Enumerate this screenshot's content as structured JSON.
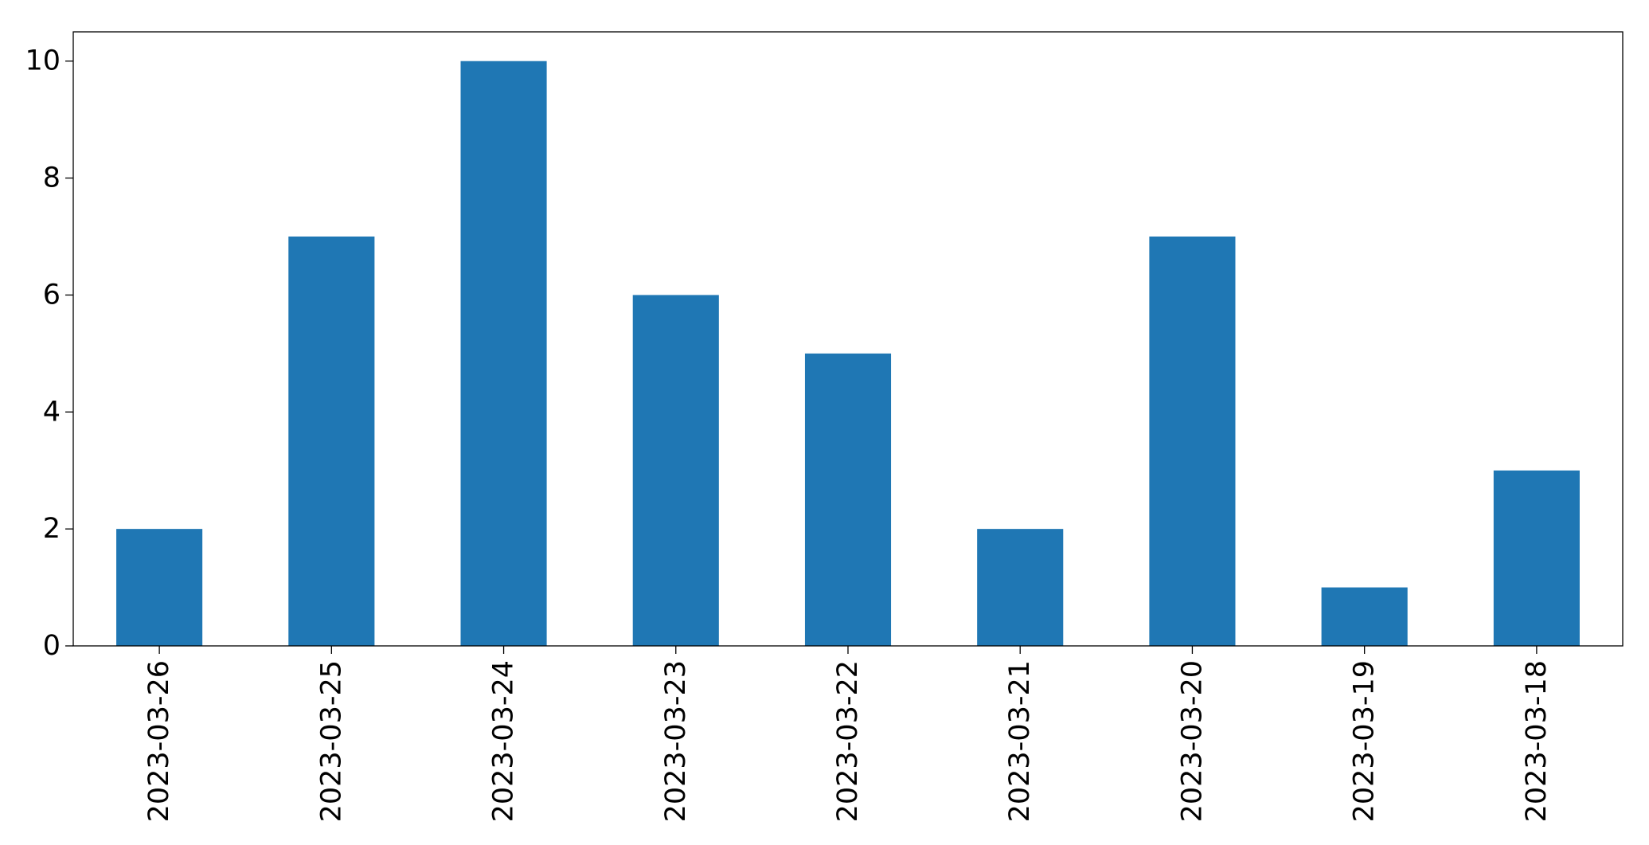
{
  "chart_data": {
    "type": "bar",
    "title": "",
    "xlabel": "",
    "ylabel": "",
    "categories": [
      "2023-03-26",
      "2023-03-25",
      "2023-03-24",
      "2023-03-23",
      "2023-03-22",
      "2023-03-21",
      "2023-03-20",
      "2023-03-19",
      "2023-03-18"
    ],
    "values": [
      2,
      7,
      10,
      6,
      5,
      2,
      7,
      1,
      3
    ],
    "ylim": [
      0,
      10.5
    ],
    "yticks": [
      "0",
      "2",
      "4",
      "6",
      "8",
      "10"
    ],
    "grid": false,
    "legend": "none",
    "bar_color": "#1f77b4"
  }
}
